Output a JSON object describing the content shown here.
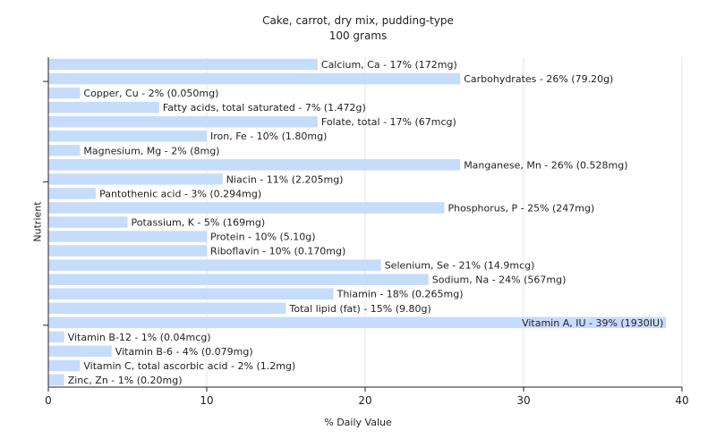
{
  "chart_data": {
    "type": "bar",
    "orientation": "horizontal",
    "title": "Cake, carrot, dry mix, pudding-type",
    "subtitle": "100 grams",
    "xlabel": "% Daily Value",
    "ylabel": "Nutrient",
    "xlim": [
      0,
      40
    ],
    "x_ticks": [
      0,
      10,
      20,
      30,
      40
    ],
    "grid": true,
    "bar_color": "#c6dcfb",
    "categories": [
      "Calcium, Ca - 17% (172mg)",
      "Carbohydrates - 26% (79.20g)",
      "Copper, Cu - 2% (0.050mg)",
      "Fatty acids, total saturated - 7% (1.472g)",
      "Folate, total - 17% (67mcg)",
      "Iron, Fe - 10% (1.80mg)",
      "Magnesium, Mg - 2% (8mg)",
      "Manganese, Mn - 26% (0.528mg)",
      "Niacin - 11% (2.205mg)",
      "Pantothenic acid - 3% (0.294mg)",
      "Phosphorus, P - 25% (247mg)",
      "Potassium, K - 5% (169mg)",
      "Protein - 10% (5.10g)",
      "Riboflavin - 10% (0.170mg)",
      "Selenium, Se - 21% (14.9mcg)",
      "Sodium, Na - 24% (567mg)",
      "Thiamin - 18% (0.265mg)",
      "Total lipid (fat) - 15% (9.80g)",
      "Vitamin A, IU - 39% (1930IU)",
      "Vitamin B-12 - 1% (0.04mcg)",
      "Vitamin B-6 - 4% (0.079mg)",
      "Vitamin C, total ascorbic acid - 2% (1.2mg)",
      "Zinc, Zn - 1% (0.20mg)"
    ],
    "values": [
      17,
      26,
      2,
      7,
      17,
      10,
      2,
      26,
      11,
      3,
      25,
      5,
      10,
      10,
      21,
      24,
      18,
      15,
      39,
      1,
      4,
      2,
      1
    ]
  }
}
